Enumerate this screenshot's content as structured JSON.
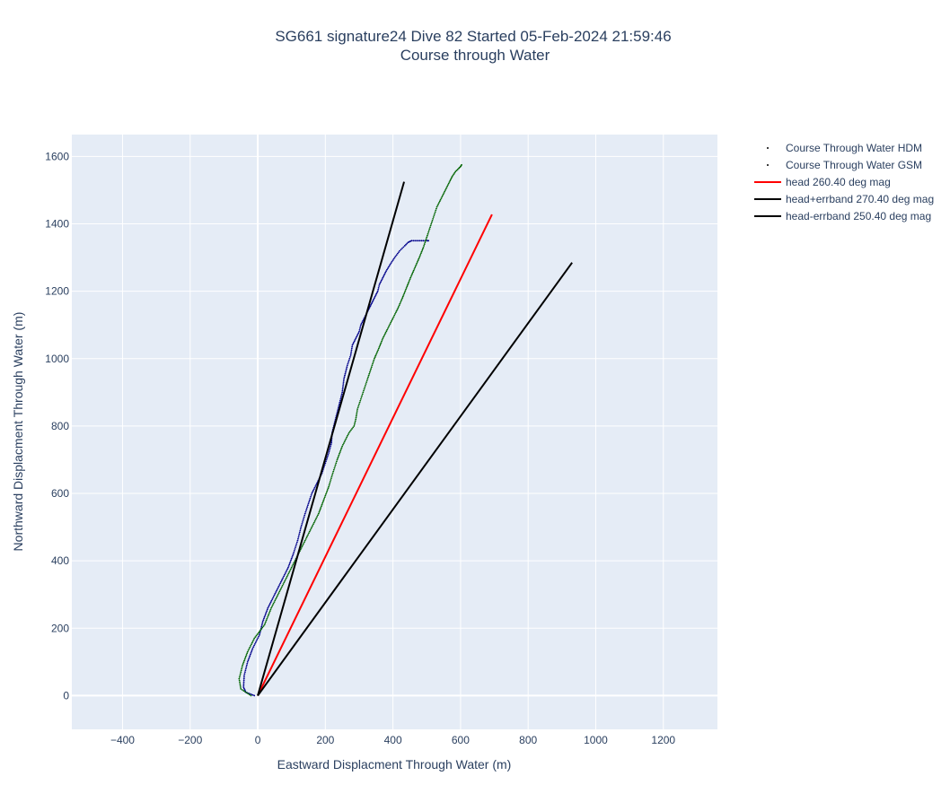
{
  "chart_data": {
    "type": "line",
    "title": "SG661 signature24 Dive 82 Started 05-Feb-2024 21:59:46",
    "subtitle": "Course through Water",
    "xlabel": "Eastward Displacment Through Water (m)",
    "ylabel": "Northward Displacment Through Water (m)",
    "xlim": [
      -550,
      1360
    ],
    "ylim": [
      -100,
      1665
    ],
    "xticks": [
      -400,
      -200,
      0,
      200,
      400,
      600,
      800,
      1000,
      1200
    ],
    "yticks": [
      0,
      200,
      400,
      600,
      800,
      1000,
      1200,
      1400,
      1600
    ],
    "grid": true,
    "legend_position": "right",
    "series": [
      {
        "name": "Course Through Water HDM",
        "mode": "markers",
        "color": "#00008b",
        "x": [
          -10,
          -35,
          -42,
          -40,
          -30,
          -15,
          5,
          15,
          30,
          45,
          60,
          75,
          90,
          105,
          118,
          128,
          140,
          150,
          160,
          175,
          190,
          200,
          210,
          218,
          220,
          230,
          240,
          250,
          255,
          265,
          275,
          280,
          290,
          300,
          305,
          315,
          325,
          335,
          345,
          355,
          360,
          370,
          380,
          392,
          405,
          420,
          435,
          445,
          455,
          470,
          480,
          490,
          500,
          505
        ],
        "y": [
          0,
          10,
          25,
          60,
          100,
          140,
          180,
          220,
          260,
          290,
          320,
          350,
          380,
          420,
          460,
          500,
          540,
          570,
          600,
          630,
          660,
          690,
          720,
          750,
          780,
          820,
          860,
          900,
          940,
          980,
          1010,
          1040,
          1060,
          1080,
          1100,
          1120,
          1140,
          1160,
          1180,
          1200,
          1220,
          1240,
          1260,
          1280,
          1300,
          1320,
          1335,
          1345,
          1350,
          1350,
          1350,
          1350,
          1350,
          1350
        ]
      },
      {
        "name": "Course Through Water GSM",
        "mode": "markers",
        "color": "#006400",
        "x": [
          -20,
          -50,
          -55,
          -45,
          -30,
          -10,
          20,
          40,
          60,
          80,
          100,
          120,
          140,
          160,
          180,
          195,
          210,
          222,
          235,
          250,
          270,
          285,
          290,
          295,
          305,
          315,
          325,
          335,
          345,
          358,
          370,
          385,
          400,
          415,
          428,
          440,
          452,
          465,
          478,
          490,
          500,
          510,
          520,
          530,
          545,
          555,
          565,
          575,
          585,
          595,
          600,
          603
        ],
        "y": [
          0,
          20,
          50,
          90,
          130,
          170,
          210,
          260,
          300,
          340,
          380,
          420,
          460,
          500,
          540,
          580,
          620,
          660,
          700,
          740,
          780,
          800,
          820,
          850,
          880,
          910,
          940,
          970,
          1000,
          1030,
          1060,
          1090,
          1120,
          1150,
          1180,
          1210,
          1240,
          1270,
          1300,
          1330,
          1360,
          1390,
          1420,
          1450,
          1480,
          1500,
          1520,
          1540,
          1555,
          1565,
          1570,
          1575
        ]
      },
      {
        "name": "head 260.40 deg mag",
        "mode": "lines",
        "color": "#ff0000",
        "x": [
          0,
          693
        ],
        "y": [
          0,
          1428
        ]
      },
      {
        "name": "head+errband 270.40 deg mag",
        "mode": "lines",
        "color": "#000000",
        "x": [
          0,
          433
        ],
        "y": [
          0,
          1525
        ]
      },
      {
        "name": "head-errband 250.40 deg mag",
        "mode": "lines",
        "color": "#000000",
        "x": [
          0,
          930
        ],
        "y": [
          0,
          1285
        ]
      }
    ]
  }
}
